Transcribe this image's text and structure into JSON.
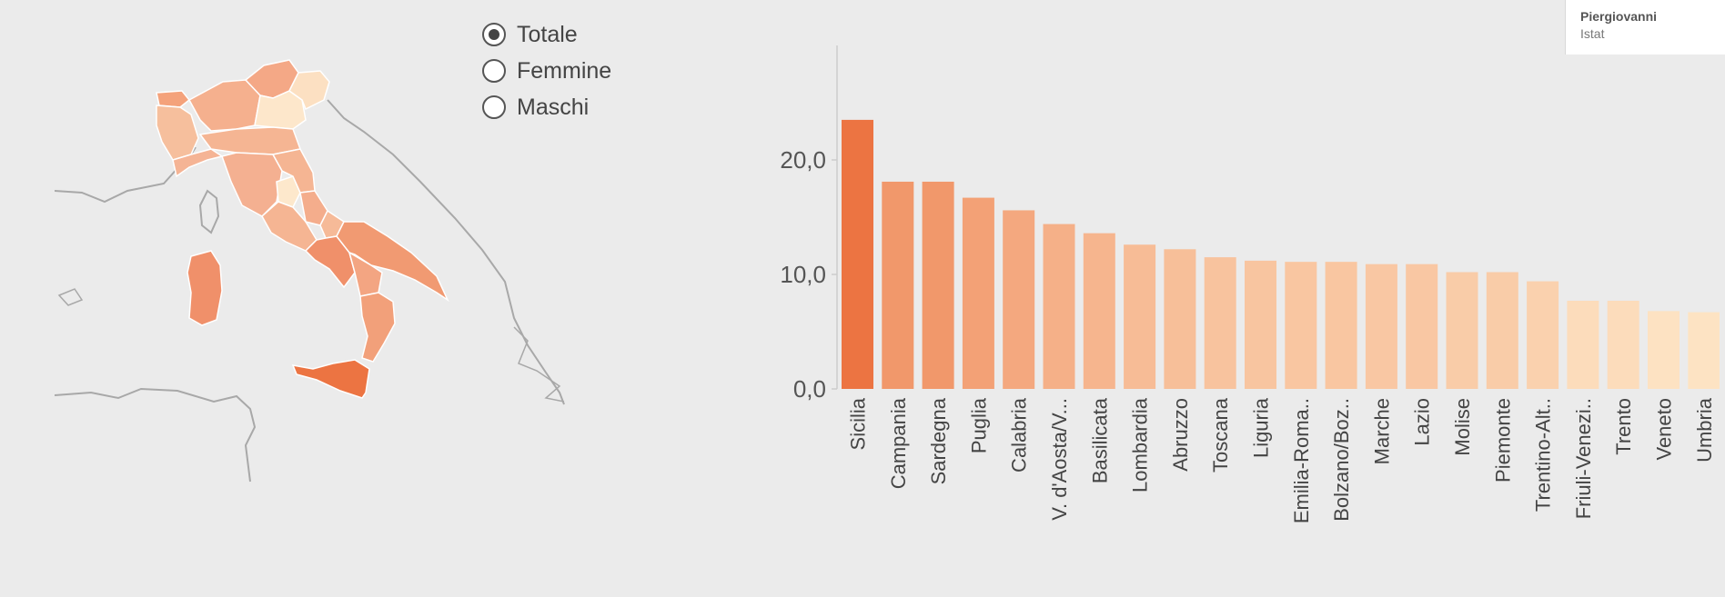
{
  "filter": {
    "options": [
      {
        "label": "Totale",
        "selected": true
      },
      {
        "label": "Femmine",
        "selected": false
      },
      {
        "label": "Maschi",
        "selected": false
      }
    ]
  },
  "credit": {
    "name": "Piergiovanni",
    "org": "Istat"
  },
  "colors": {
    "background": "#ebebeb",
    "scale_low": "#fde3c3",
    "scale_high": "#ec7442",
    "map_border": "#a8a8a8",
    "axis": "#cccccc"
  },
  "map": {
    "type": "choropleth",
    "region": "Italia",
    "regions": [
      {
        "name": "Sicilia",
        "value": 23.5
      },
      {
        "name": "Campania",
        "value": 18.1
      },
      {
        "name": "Sardegna",
        "value": 18.1
      },
      {
        "name": "Puglia",
        "value": 16.7
      },
      {
        "name": "Calabria",
        "value": 15.6
      },
      {
        "name": "V. d'Aosta/V...",
        "value": 14.4
      },
      {
        "name": "Basilicata",
        "value": 13.6
      },
      {
        "name": "Lombardia",
        "value": 12.6
      },
      {
        "name": "Abruzzo",
        "value": 12.2
      },
      {
        "name": "Toscana",
        "value": 11.5
      },
      {
        "name": "Liguria",
        "value": 11.2
      },
      {
        "name": "Emilia-Roma..",
        "value": 11.1
      },
      {
        "name": "Bolzano/Boz..",
        "value": 11.1
      },
      {
        "name": "Marche",
        "value": 10.9
      },
      {
        "name": "Lazio",
        "value": 10.9
      },
      {
        "name": "Molise",
        "value": 10.2
      },
      {
        "name": "Piemonte",
        "value": 10.2
      },
      {
        "name": "Trentino-Alt..",
        "value": 9.4
      },
      {
        "name": "Friuli-Venezi..",
        "value": 7.7
      },
      {
        "name": "Trento",
        "value": 7.7
      },
      {
        "name": "Veneto",
        "value": 6.8
      },
      {
        "name": "Umbria",
        "value": 6.7
      }
    ]
  },
  "chart_data": {
    "type": "bar",
    "categories": [
      "Sicilia",
      "Campania",
      "Sardegna",
      "Puglia",
      "Calabria",
      "V. d'Aosta/V...",
      "Basilicata",
      "Lombardia",
      "Abruzzo",
      "Toscana",
      "Liguria",
      "Emilia-Roma..",
      "Bolzano/Boz..",
      "Marche",
      "Lazio",
      "Molise",
      "Piemonte",
      "Trentino-Alt..",
      "Friuli-Venezi..",
      "Trento",
      "Veneto",
      "Umbria"
    ],
    "values": [
      23.5,
      18.1,
      18.1,
      16.7,
      15.6,
      14.4,
      13.6,
      12.6,
      12.2,
      11.5,
      11.2,
      11.1,
      11.1,
      10.9,
      10.9,
      10.2,
      10.2,
      9.4,
      7.7,
      7.7,
      6.8,
      6.7
    ],
    "yticks": [
      "0,0",
      "10,0",
      "20,0"
    ],
    "ytick_values": [
      0,
      10,
      20
    ],
    "ylim": [
      0,
      30
    ],
    "grid": false,
    "title": "",
    "xlabel": "",
    "ylabel": ""
  }
}
